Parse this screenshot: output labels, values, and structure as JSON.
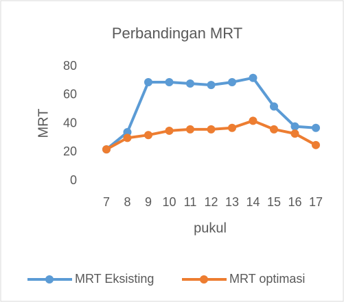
{
  "chart_data": {
    "type": "line",
    "title": "Perbandingan MRT",
    "y_label": "MRT",
    "x_label": "pukul",
    "categories": [
      "7",
      "8",
      "9",
      "10",
      "11",
      "12",
      "13",
      "14",
      "15",
      "16",
      "17"
    ],
    "series": [
      {
        "name": "MRT Eksisting",
        "color": "#5b9bd5",
        "values": [
          22,
          34,
          69,
          69,
          68,
          67,
          69,
          72,
          52,
          38,
          37
        ]
      },
      {
        "name": "MRT optimasi",
        "color": "#ed7d31",
        "values": [
          22,
          30,
          32,
          35,
          36,
          36,
          37,
          42,
          36,
          33,
          25
        ]
      }
    ],
    "ylim": [
      0,
      80
    ],
    "yticks": [
      0,
      20,
      40,
      60,
      80
    ],
    "grid": false,
    "legend": "bottom"
  }
}
